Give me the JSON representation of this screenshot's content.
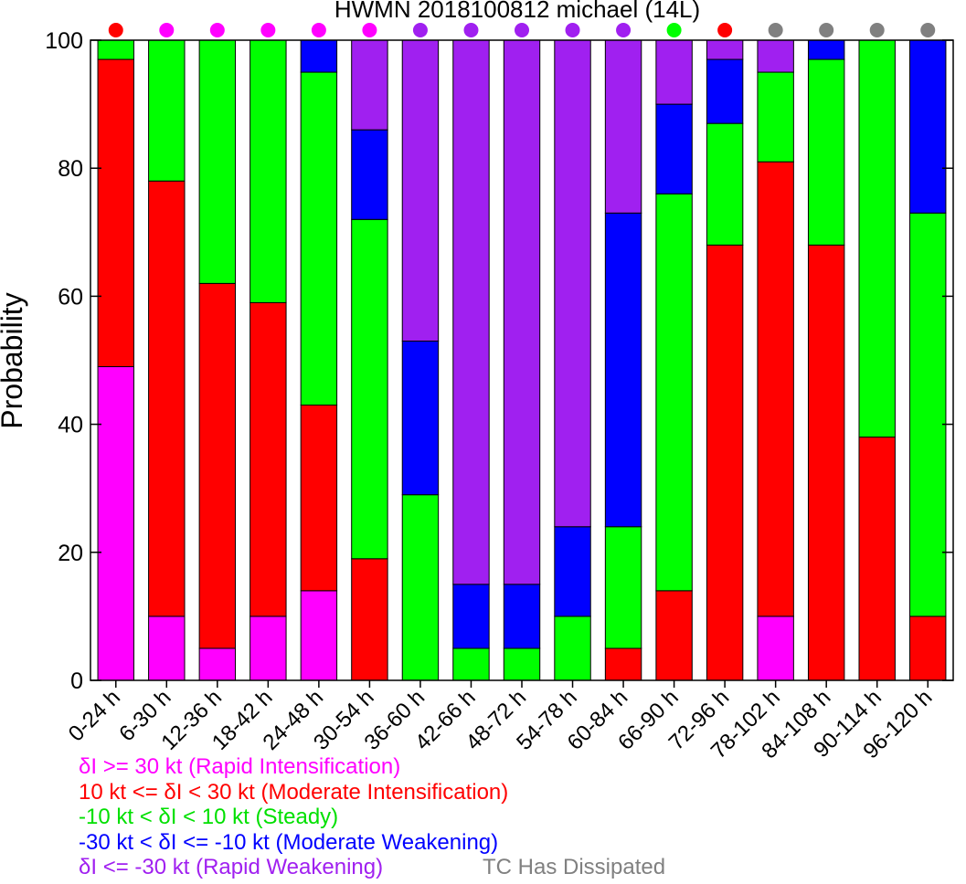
{
  "chart_data": {
    "type": "bar",
    "stacked": true,
    "title": "HWMN 2018100812 michael (14L)",
    "xlabel": "",
    "ylabel": "Probability",
    "ylim": [
      0,
      100
    ],
    "yticks": [
      0,
      20,
      40,
      60,
      80,
      100
    ],
    "grid": false,
    "categories": [
      "0-24 h",
      "6-30 h",
      "12-36 h",
      "18-42 h",
      "24-48 h",
      "30-54 h",
      "36-60 h",
      "42-66 h",
      "48-72 h",
      "54-78 h",
      "60-84 h",
      "66-90 h",
      "72-96 h",
      "78-102 h",
      "84-108 h",
      "90-114 h",
      "96-120 h"
    ],
    "series": [
      {
        "name": "δI >= 30 kt (Rapid Intensification)",
        "color": "#ff00ff",
        "values": [
          49,
          10,
          5,
          10,
          14,
          0,
          0,
          0,
          0,
          0,
          0,
          0,
          0,
          10,
          0,
          0,
          0
        ]
      },
      {
        "name": "10 kt <= δI < 30 kt (Moderate Intensification)",
        "color": "#ff0000",
        "values": [
          48,
          68,
          57,
          49,
          29,
          19,
          0,
          0,
          0,
          0,
          5,
          14,
          68,
          71,
          68,
          38,
          10
        ]
      },
      {
        "name": "-10 kt < δI < 10 kt (Steady)",
        "color": "#00ff00",
        "values": [
          3,
          22,
          38,
          41,
          52,
          53,
          29,
          5,
          5,
          10,
          19,
          62,
          19,
          14,
          29,
          62,
          63
        ]
      },
      {
        "name": "-30 kt < δI <= -10 kt (Moderate Weakening)",
        "color": "#0000ff",
        "values": [
          0,
          0,
          0,
          0,
          5,
          14,
          24,
          10,
          10,
          14,
          49,
          14,
          10,
          0,
          3,
          0,
          27
        ]
      },
      {
        "name": "δI <= -30 kt (Rapid Weakening)",
        "color": "#a020f0",
        "values": [
          0,
          0,
          0,
          0,
          0,
          14,
          47,
          85,
          85,
          76,
          27,
          10,
          3,
          5,
          0,
          0,
          0
        ]
      }
    ],
    "dot_colors": [
      "#ff0000",
      "#ff00ff",
      "#ff00ff",
      "#ff00ff",
      "#ff00ff",
      "#ff00ff",
      "#a020f0",
      "#a020f0",
      "#a020f0",
      "#a020f0",
      "#a020f0",
      "#00ff00",
      "#ff0000",
      "#808080",
      "#808080",
      "#808080",
      "#808080"
    ],
    "dissipated_label": "TC Has Dissipated",
    "dissipated_color": "#808080"
  }
}
